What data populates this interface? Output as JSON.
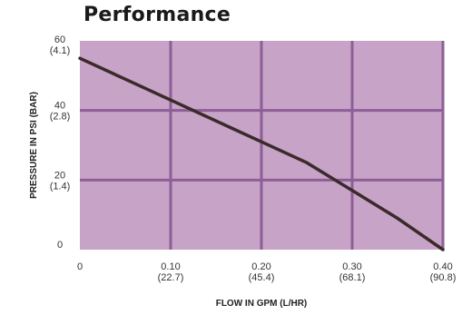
{
  "chart_data": {
    "type": "line",
    "title": "Performance",
    "xlabel": "FLOW IN GPM (L/HR)",
    "ylabel": "PRESSURE IN PSI (BAR)",
    "xlim": [
      0,
      0.4
    ],
    "ylim": [
      0,
      60
    ],
    "x_ticks": [
      {
        "value": 0,
        "label": "0",
        "sublabel": ""
      },
      {
        "value": 0.1,
        "label": "0.10",
        "sublabel": "(22.7)"
      },
      {
        "value": 0.2,
        "label": "0.20",
        "sublabel": "(45.4)"
      },
      {
        "value": 0.3,
        "label": "0.30",
        "sublabel": "(68.1)"
      },
      {
        "value": 0.4,
        "label": "0.40",
        "sublabel": "(90.8)"
      }
    ],
    "y_ticks": [
      {
        "value": 0,
        "label": "0",
        "sublabel": ""
      },
      {
        "value": 20,
        "label": "20",
        "sublabel": "(1.4)"
      },
      {
        "value": 40,
        "label": "40",
        "sublabel": "(2.8)"
      },
      {
        "value": 60,
        "label": "60",
        "sublabel": "(4.1)"
      }
    ],
    "series": [
      {
        "x": [
          0,
          0.05,
          0.1,
          0.15,
          0.2,
          0.25,
          0.3,
          0.35,
          0.4
        ],
        "y": [
          55,
          49,
          43,
          37,
          31,
          25,
          17,
          9,
          0
        ]
      }
    ],
    "grid": true,
    "colors": {
      "plot_bg": "#c7a3c7",
      "grid": "#8e5e96",
      "line": "#3a2a2a"
    }
  }
}
